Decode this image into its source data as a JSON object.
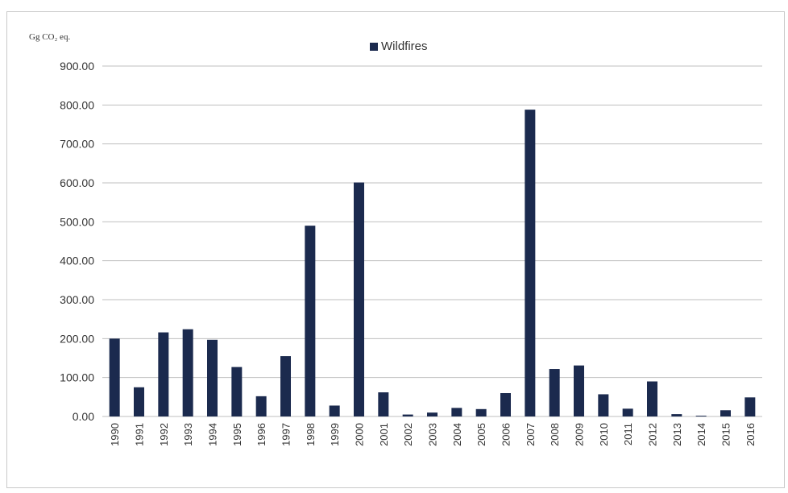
{
  "chart_data": {
    "type": "bar",
    "unit_label": "Gg CO₂ eq.",
    "legend": [
      "Wildfires"
    ],
    "legend_position": "top-center",
    "grid": true,
    "ylim": [
      0,
      900
    ],
    "y_ticks": [
      "0.00",
      "100.00",
      "200.00",
      "300.00",
      "400.00",
      "500.00",
      "600.00",
      "700.00",
      "800.00",
      "900.00"
    ],
    "categories": [
      "1990",
      "1991",
      "1992",
      "1993",
      "1994",
      "1995",
      "1996",
      "1997",
      "1998",
      "1999",
      "2000",
      "2001",
      "2002",
      "2003",
      "2004",
      "2005",
      "2006",
      "2007",
      "2008",
      "2009",
      "2010",
      "2011",
      "2012",
      "2013",
      "2014",
      "2015",
      "2016"
    ],
    "series": [
      {
        "name": "Wildfires",
        "color": "#1b2a4e",
        "values": [
          200,
          75,
          216,
          224,
          197,
          127,
          52,
          155,
          490,
          28,
          601,
          62,
          5,
          10,
          22,
          19,
          60,
          788,
          122,
          131,
          57,
          20,
          90,
          6,
          2,
          16,
          49
        ]
      }
    ]
  }
}
